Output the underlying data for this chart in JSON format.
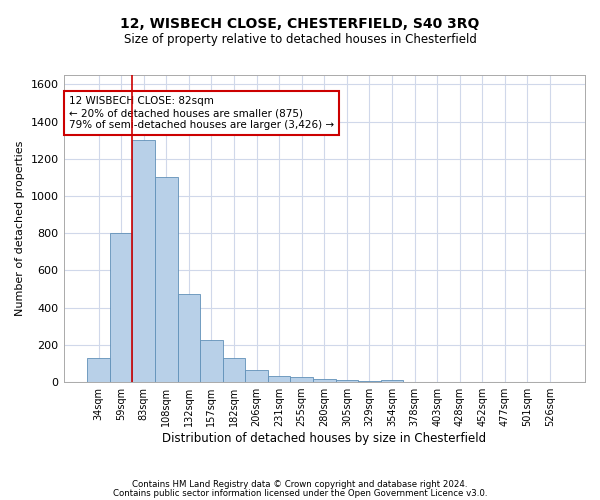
{
  "title1": "12, WISBECH CLOSE, CHESTERFIELD, S40 3RQ",
  "title2": "Size of property relative to detached houses in Chesterfield",
  "xlabel": "Distribution of detached houses by size in Chesterfield",
  "ylabel": "Number of detached properties",
  "footnote1": "Contains HM Land Registry data © Crown copyright and database right 2024.",
  "footnote2": "Contains public sector information licensed under the Open Government Licence v3.0.",
  "annotation_line1": "12 WISBECH CLOSE: 82sqm",
  "annotation_line2": "← 20% of detached houses are smaller (875)",
  "annotation_line3": "79% of semi-detached houses are larger (3,426) →",
  "bar_color": "#b8d0e8",
  "bar_edge_color": "#6090b8",
  "grid_color": "#d0d8ea",
  "marker_line_color": "#cc0000",
  "annotation_box_color": "#cc0000",
  "categories": [
    "34sqm",
    "59sqm",
    "83sqm",
    "108sqm",
    "132sqm",
    "157sqm",
    "182sqm",
    "206sqm",
    "231sqm",
    "255sqm",
    "280sqm",
    "305sqm",
    "329sqm",
    "354sqm",
    "378sqm",
    "403sqm",
    "428sqm",
    "452sqm",
    "477sqm",
    "501sqm",
    "526sqm"
  ],
  "values": [
    130,
    800,
    1300,
    1100,
    475,
    225,
    130,
    65,
    35,
    25,
    15,
    10,
    5,
    10,
    2,
    2,
    2,
    2,
    2,
    2,
    2
  ],
  "ylim": [
    0,
    1650
  ],
  "yticks": [
    0,
    200,
    400,
    600,
    800,
    1000,
    1200,
    1400,
    1600
  ],
  "figsize": [
    6.0,
    5.0
  ],
  "dpi": 100
}
